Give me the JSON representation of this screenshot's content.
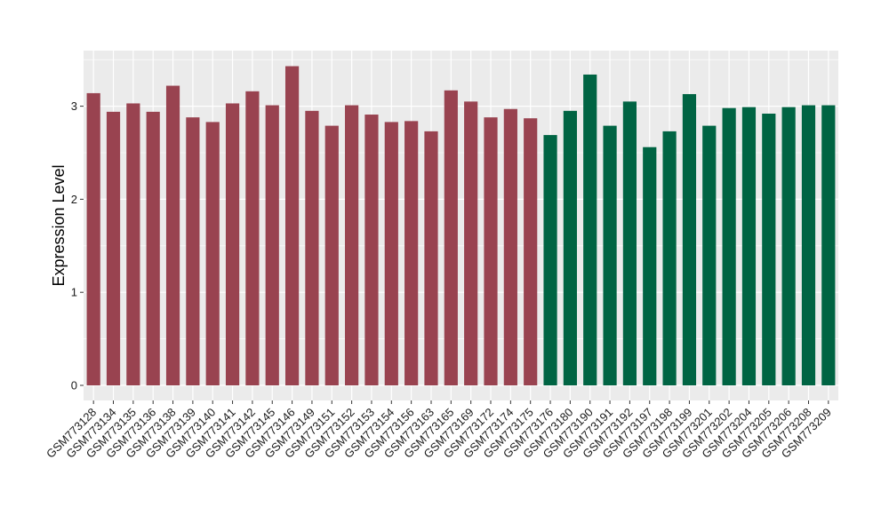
{
  "chart_data": {
    "type": "bar",
    "title": "",
    "xlabel": "",
    "ylabel": "Expression Level",
    "ylim": [
      -0.16,
      3.6
    ],
    "yticks": [
      0,
      1,
      2,
      3
    ],
    "grid": true,
    "legend": "none",
    "categories": [
      "GSM773128",
      "GSM773134",
      "GSM773135",
      "GSM773136",
      "GSM773138",
      "GSM773139",
      "GSM773140",
      "GSM773141",
      "GSM773142",
      "GSM773145",
      "GSM773146",
      "GSM773149",
      "GSM773151",
      "GSM773152",
      "GSM773153",
      "GSM773154",
      "GSM773156",
      "GSM773163",
      "GSM773165",
      "GSM773169",
      "GSM773172",
      "GSM773174",
      "GSM773175",
      "GSM773176",
      "GSM773180",
      "GSM773190",
      "GSM773191",
      "GSM773192",
      "GSM773197",
      "GSM773198",
      "GSM773199",
      "GSM773201",
      "GSM773202",
      "GSM773204",
      "GSM773205",
      "GSM773206",
      "GSM773208",
      "GSM773209"
    ],
    "values": [
      3.14,
      2.94,
      3.03,
      2.94,
      3.22,
      2.88,
      2.83,
      3.03,
      3.16,
      3.01,
      3.43,
      2.95,
      2.79,
      3.01,
      2.91,
      2.83,
      2.84,
      2.73,
      3.17,
      3.05,
      2.88,
      2.97,
      2.87,
      2.69,
      2.95,
      3.34,
      2.79,
      3.05,
      2.56,
      2.73,
      3.13,
      2.79,
      2.98,
      2.99,
      2.92,
      2.99,
      3.01,
      3.01
    ],
    "group_split_index": 23,
    "colors": {
      "group_a": "#994350",
      "group_b": "#006443",
      "panel": "#ebebeb",
      "grid": "#ffffff"
    }
  }
}
